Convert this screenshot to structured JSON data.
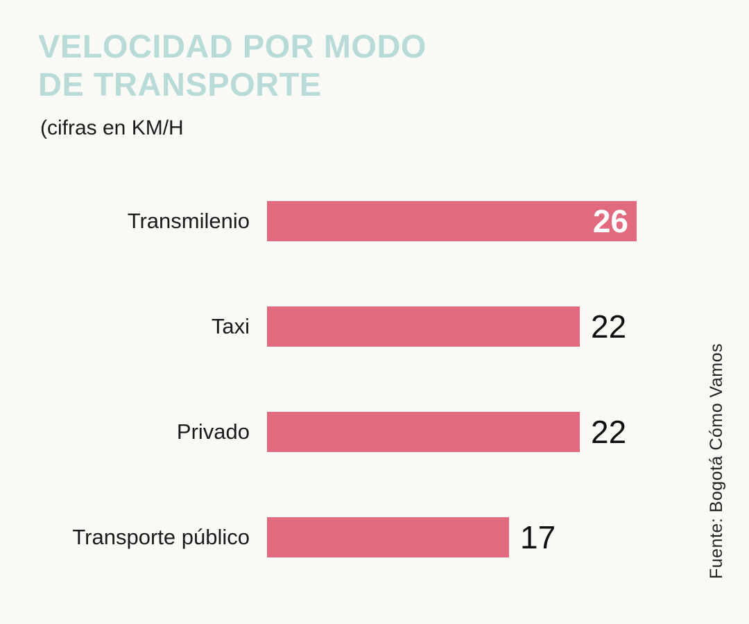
{
  "page": {
    "title_line1": "VELOCIDAD POR MODO",
    "title_line2": "DE TRANSPORTE",
    "subtitle": "(cifras en KM/H",
    "source": "Fuente: Bogotá Cómo Vamos"
  },
  "colors": {
    "background": "#f9f9f6",
    "title": "#b8dbd7",
    "bar": "#e16a7e",
    "value_inside": "#ffffff",
    "value_outside": "#111111",
    "text": "#1a1a1a"
  },
  "chart_data": {
    "type": "bar",
    "orientation": "horizontal",
    "title": "VELOCIDAD POR MODO DE TRANSPORTE",
    "subtitle": "(cifras en KM/H",
    "unit": "KM/H",
    "categories": [
      "Transmilenio",
      "Taxi",
      "Privado",
      "Transporte público"
    ],
    "values": [
      26,
      22,
      22,
      17
    ],
    "value_label_position": [
      "inside",
      "outside",
      "outside",
      "outside"
    ],
    "xlim": [
      0,
      26
    ],
    "grid": false,
    "legend": false,
    "source": "Fuente: Bogotá Cómo Vamos"
  }
}
